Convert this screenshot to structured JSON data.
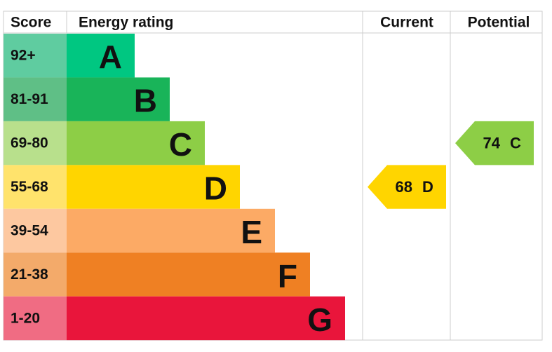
{
  "chart_data": {
    "type": "epc",
    "headers": [
      "Score",
      "Energy rating",
      "Current",
      "Potential"
    ],
    "bands": [
      {
        "score": "92+",
        "rating": "A",
        "color": "#00c781",
        "score_color": "#5fcca0"
      },
      {
        "score": "81-91",
        "rating": "B",
        "color": "#19b459",
        "score_color": "#5fbf86"
      },
      {
        "score": "69-80",
        "rating": "C",
        "color": "#8dce46",
        "score_color": "#b8e08c"
      },
      {
        "score": "55-68",
        "rating": "D",
        "color": "#ffd500",
        "score_color": "#ffe36c"
      },
      {
        "score": "39-54",
        "rating": "E",
        "color": "#fcaa65",
        "score_color": "#fdc8a0"
      },
      {
        "score": "21-38",
        "rating": "F",
        "color": "#ef8023",
        "score_color": "#f3aa6a"
      },
      {
        "score": "1-20",
        "rating": "G",
        "color": "#e9153b",
        "score_color": "#f06c83"
      }
    ],
    "current": {
      "value": 68,
      "rating": "D"
    },
    "potential": {
      "value": 74,
      "rating": "C"
    }
  }
}
